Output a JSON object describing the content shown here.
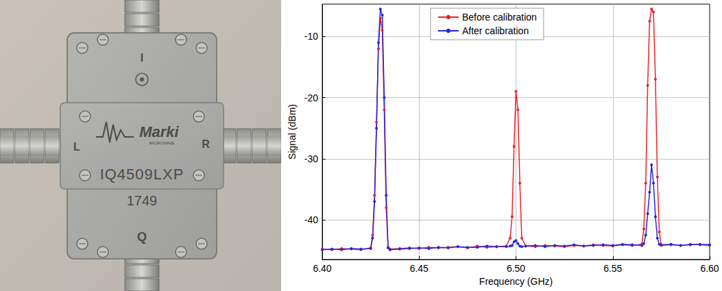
{
  "photo": {
    "labels": {
      "top": "I",
      "bottom": "Q",
      "left": "L",
      "right": "R"
    },
    "brand": "Marki",
    "brand_sub": "MICROWAVE",
    "model": "IQ4509LXP",
    "code": "1749"
  },
  "chart_data": {
    "type": "line",
    "xlabel": "Frequency (GHz)",
    "ylabel": "Signal (dBm)",
    "x": [
      6.4,
      6.405,
      6.41,
      6.415,
      6.42,
      6.425,
      6.426,
      6.427,
      6.428,
      6.429,
      6.43,
      6.431,
      6.432,
      6.433,
      6.434,
      6.435,
      6.44,
      6.445,
      6.45,
      6.455,
      6.46,
      6.465,
      6.47,
      6.475,
      6.48,
      6.485,
      6.49,
      6.495,
      6.497,
      6.498,
      6.499,
      6.5,
      6.501,
      6.502,
      6.503,
      6.505,
      6.51,
      6.515,
      6.52,
      6.525,
      6.53,
      6.535,
      6.54,
      6.545,
      6.55,
      6.555,
      6.56,
      6.565,
      6.566,
      6.567,
      6.568,
      6.569,
      6.57,
      6.571,
      6.572,
      6.573,
      6.574,
      6.575,
      6.58,
      6.585,
      6.59,
      6.595,
      6.6
    ],
    "series": [
      {
        "name": "Before calibration",
        "color": "#e8222a",
        "marker": "circle",
        "line_style": "solid",
        "values": [
          -44.8,
          -44.9,
          -44.7,
          -44.8,
          -44.9,
          -44.6,
          -42.5,
          -36.0,
          -24.0,
          -12.0,
          -7.0,
          -9.0,
          -22.0,
          -38.0,
          -44.5,
          -44.8,
          -44.7,
          -44.6,
          -44.7,
          -44.5,
          -44.6,
          -44.5,
          -44.4,
          -44.6,
          -44.3,
          -44.5,
          -44.4,
          -44.3,
          -43.0,
          -39.5,
          -28.0,
          -19.0,
          -22.0,
          -34.0,
          -43.0,
          -44.3,
          -44.4,
          -44.2,
          -44.3,
          -44.4,
          -44.2,
          -44.3,
          -44.1,
          -44.2,
          -44.3,
          -44.1,
          -44.2,
          -44.0,
          -41.5,
          -34.0,
          -18.0,
          -7.5,
          -5.5,
          -6.0,
          -17.0,
          -33.0,
          -42.0,
          -44.2,
          -44.1,
          -44.2,
          -44.0,
          -44.1,
          -44.2
        ]
      },
      {
        "name": "After calibration",
        "color": "#2424e0",
        "marker": "circle",
        "line_style": "solid",
        "values": [
          -44.9,
          -44.8,
          -44.9,
          -44.7,
          -44.8,
          -44.7,
          -43.0,
          -37.0,
          -25.0,
          -11.0,
          -5.5,
          -6.5,
          -20.0,
          -36.0,
          -44.6,
          -44.9,
          -44.8,
          -44.7,
          -44.6,
          -44.7,
          -44.5,
          -44.6,
          -44.4,
          -44.5,
          -44.5,
          -44.3,
          -44.4,
          -44.4,
          -44.3,
          -44.2,
          -43.6,
          -43.4,
          -43.9,
          -44.3,
          -44.4,
          -44.3,
          -44.2,
          -44.4,
          -44.2,
          -44.3,
          -44.1,
          -44.3,
          -44.2,
          -44.1,
          -44.2,
          -44.0,
          -44.1,
          -44.2,
          -43.9,
          -42.5,
          -39.0,
          -35.5,
          -31.0,
          -34.0,
          -39.5,
          -43.0,
          -44.0,
          -44.1,
          -44.0,
          -44.2,
          -44.1,
          -44.0,
          -44.1
        ]
      }
    ],
    "xlim": [
      6.4,
      6.6
    ],
    "xticks": [
      {
        "value": 6.4,
        "label": "6.40"
      },
      {
        "value": 6.45,
        "label": "6.45"
      },
      {
        "value": 6.5,
        "label": "6.50"
      },
      {
        "value": 6.55,
        "label": "6.55"
      },
      {
        "value": 6.6,
        "label": "6.60"
      }
    ],
    "ylim": [
      -46.5,
      -4.7
    ],
    "yticks": [
      -40,
      -30,
      -20,
      -10
    ],
    "grid": true,
    "legend": "top"
  }
}
